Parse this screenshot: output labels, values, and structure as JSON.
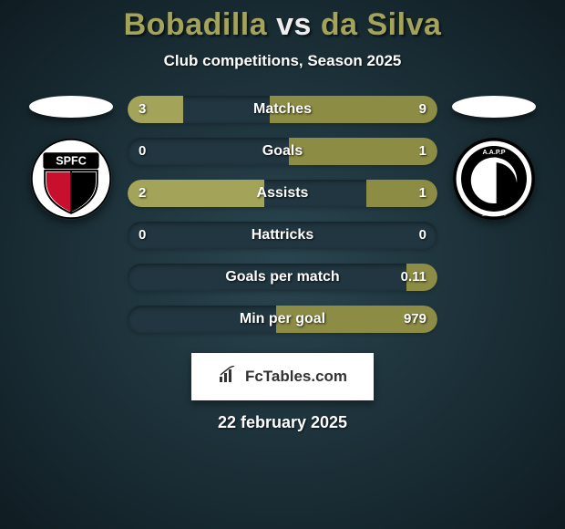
{
  "title": {
    "left": "Bobadilla",
    "vs": "vs",
    "right": "da Silva"
  },
  "subtitle": "Club competitions, Season 2025",
  "date": "22 february 2025",
  "brand": "FcTables.com",
  "colors": {
    "left_bar": "#a3a35a",
    "right_bar": "#8c8c45",
    "track": "#213640",
    "accent_text": "#a3a35a"
  },
  "stats": [
    {
      "label": "Matches",
      "left_val": "3",
      "right_val": "9",
      "left_pct": 18,
      "right_pct": 54
    },
    {
      "label": "Goals",
      "left_val": "0",
      "right_val": "1",
      "left_pct": 0,
      "right_pct": 48
    },
    {
      "label": "Assists",
      "left_val": "2",
      "right_val": "1",
      "left_pct": 44,
      "right_pct": 23
    },
    {
      "label": "Hattricks",
      "left_val": "0",
      "right_val": "0",
      "left_pct": 0,
      "right_pct": 0
    },
    {
      "label": "Goals per match",
      "left_val": "",
      "right_val": "0.11",
      "left_pct": 0,
      "right_pct": 10
    },
    {
      "label": "Min per goal",
      "left_val": "",
      "right_val": "979",
      "left_pct": 0,
      "right_pct": 52
    }
  ],
  "crests": {
    "left": {
      "name": "spfc-crest",
      "primary_color": "#000000",
      "secondary_color": "#c8102e",
      "tertiary_color": "#ffffff",
      "letters": "SPFC"
    },
    "right": {
      "name": "aapp-crest",
      "primary_color": "#ffffff",
      "secondary_color": "#000000",
      "letters": "A.A.P.P"
    }
  }
}
